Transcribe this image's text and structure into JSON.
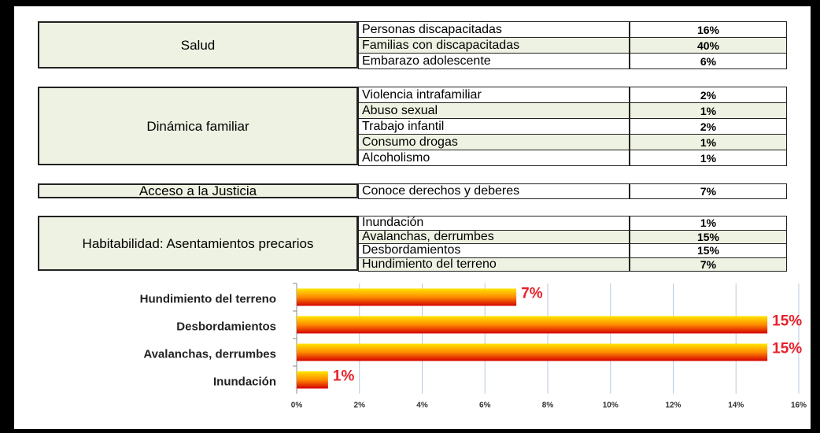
{
  "table": {
    "groups": [
      {
        "label": "Salud",
        "rows": [
          [
            "Personas discapacitadas",
            "16%"
          ],
          [
            "Familias con  discapacitadas",
            "40%"
          ],
          [
            "Embarazo adolescente",
            "6%"
          ]
        ]
      },
      {
        "label": "Dinámica familiar",
        "rows": [
          [
            "Violencia intrafamiliar",
            "2%"
          ],
          [
            "Abuso sexual",
            "1%"
          ],
          [
            "Trabajo infantil",
            "2%"
          ],
          [
            "Consumo drogas",
            "1%"
          ],
          [
            "Alcoholismo",
            "1%"
          ]
        ]
      },
      {
        "label": "Acceso a la Justicia",
        "rows": [
          [
            "Conoce derechos y deberes",
            "7%"
          ]
        ]
      },
      {
        "label": "Habitabilidad: Asentamientos precarios",
        "rows": [
          [
            "Inundación",
            "1%"
          ],
          [
            "Avalanchas, derrumbes",
            "15%"
          ],
          [
            "Desbordamientos",
            "15%"
          ],
          [
            "Hundimiento del terreno",
            "7%"
          ]
        ]
      }
    ]
  },
  "chart_data": {
    "type": "bar",
    "orientation": "horizontal",
    "categories": [
      "Hundimiento del terreno",
      "Desbordamientos",
      "Avalanchas, derrumbes",
      "Inundación"
    ],
    "values": [
      7,
      15,
      15,
      1
    ],
    "value_labels": [
      "7%",
      "15%",
      "15%",
      "1%"
    ],
    "xlim": [
      0,
      16
    ],
    "xticks": [
      {
        "value": 0,
        "label": "0%"
      },
      {
        "value": 2,
        "label": "2%"
      },
      {
        "value": 4,
        "label": "4%"
      },
      {
        "value": 6,
        "label": "6%"
      },
      {
        "value": 8,
        "label": "8%"
      },
      {
        "value": 10,
        "label": "10%"
      },
      {
        "value": 12,
        "label": "12%"
      },
      {
        "value": 14,
        "label": "14%"
      },
      {
        "value": 16,
        "label": "16%"
      }
    ],
    "grid": true
  }
}
